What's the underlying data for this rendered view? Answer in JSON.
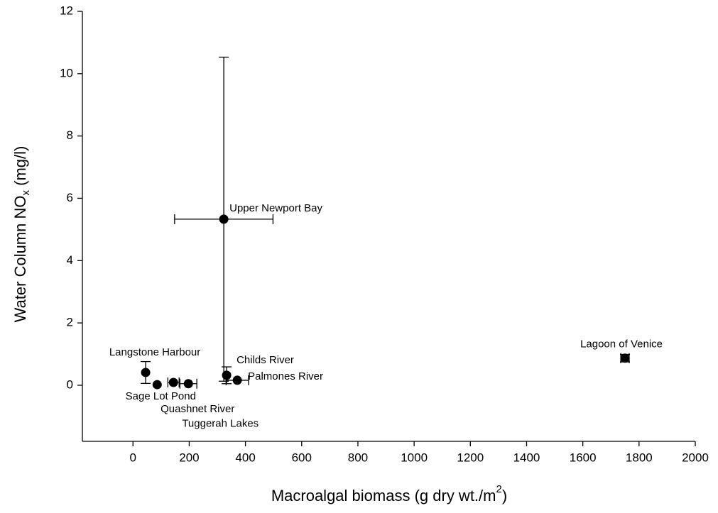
{
  "chart_data": {
    "type": "scatter",
    "x_label": {
      "text": "Macroalgal biomass (g dry wt./m",
      "sup": "2",
      "tail": ")"
    },
    "y_label": {
      "text": "Water Column NO",
      "sub": "x",
      "tail": " (mg/l)"
    },
    "xlim": [
      -180,
      2000
    ],
    "ylim": [
      -1.8,
      12
    ],
    "xticks": [
      0,
      200,
      400,
      600,
      800,
      1000,
      1200,
      1400,
      1600,
      1800,
      2000
    ],
    "yticks": [
      0,
      2,
      4,
      6,
      8,
      10,
      12
    ],
    "color": "#000000",
    "points": [
      {
        "name": "Langstone Harbour",
        "x": 45,
        "y": 0.41,
        "yerr": 0.35
      },
      {
        "name": "Sage Lot Pond",
        "x": 86,
        "y": 0.02
      },
      {
        "name": "Quashnet River",
        "x": 144,
        "y": 0.09,
        "xerr": 20
      },
      {
        "name": "Tuggerah Lakes",
        "x": 197,
        "y": 0.05,
        "xerr": 30
      },
      {
        "name": "Upper Newport Bay",
        "x": 323,
        "y": 5.33,
        "xerr": 175,
        "yerr": 5.2
      },
      {
        "name": "Childs River",
        "x": 333,
        "y": 0.32,
        "yerr": 0.27
      },
      {
        "name": "Palmones River",
        "x": 371,
        "y": 0.16,
        "xerr": 40
      },
      {
        "name": "Lagoon of Venice",
        "x": 1750,
        "y": 0.87,
        "xerr": 15,
        "yerr": 0.12
      }
    ]
  }
}
